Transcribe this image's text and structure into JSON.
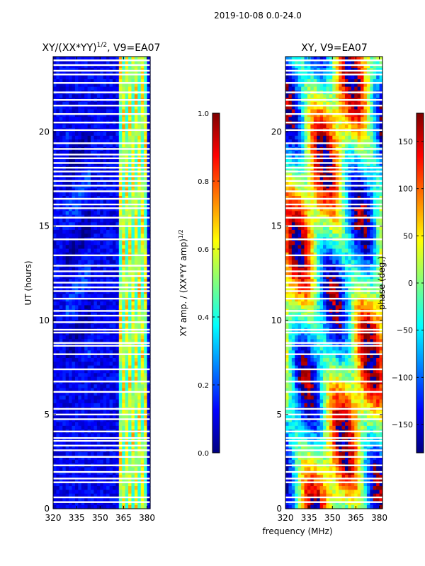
{
  "suptitle": "2019-10-08 0.0-24.0",
  "shared_xlabel": "frequency (MHz)",
  "colormap": "jet",
  "colors": {
    "jet_stops": [
      "#00007f",
      "#0000ff",
      "#007fff",
      "#00ffff",
      "#7fff7f",
      "#ffff00",
      "#ff7f00",
      "#ff0000",
      "#7f0000"
    ],
    "gap": "#ffffff"
  },
  "chart_data": [
    {
      "type": "heatmap",
      "title": "XY/(XX*YY)",
      "title_superscript": "1/2",
      "title_suffix": ", V9=EA07",
      "xlabel": "",
      "ylabel": "UT (hours)",
      "xlim": [
        320,
        382
      ],
      "ylim": [
        0,
        24
      ],
      "xticks": [
        "320",
        "335",
        "350",
        "365",
        "380"
      ],
      "xtick_values": [
        320,
        335,
        350,
        365,
        380
      ],
      "yticks": [
        "0",
        "5",
        "10",
        "15",
        "20"
      ],
      "ytick_values": [
        0,
        5,
        10,
        15,
        20
      ],
      "colorbar": {
        "label": "XY amp. / (XX*YY amp)",
        "label_superscript": "1/2",
        "range": [
          0,
          1
        ],
        "tick_values": [
          0.0,
          0.2,
          0.4,
          0.6,
          0.8,
          1.0
        ],
        "ticks": [
          "0.0",
          "0.2",
          "0.4",
          "0.6",
          "0.8",
          "1.0"
        ]
      },
      "description_values": {
        "background_level": 0.05,
        "bright_band_mhz": [
          362,
          380
        ],
        "bright_band_level": [
          0.4,
          0.75
        ]
      }
    },
    {
      "type": "heatmap",
      "title": "XY, V9=EA07",
      "xlabel": "",
      "ylabel": "",
      "xlim": [
        320,
        382
      ],
      "ylim": [
        0,
        24
      ],
      "xticks": [
        "320",
        "335",
        "350",
        "365",
        "380"
      ],
      "xtick_values": [
        320,
        335,
        350,
        365,
        380
      ],
      "yticks": [
        "0",
        "5",
        "10",
        "15",
        "20"
      ],
      "ytick_values": [
        0,
        5,
        10,
        15,
        20
      ],
      "colorbar": {
        "label": "phase (deg.)",
        "range": [
          -180,
          180
        ],
        "tick_values": [
          -150,
          -100,
          -50,
          0,
          50,
          100,
          150
        ],
        "ticks": [
          "−150",
          "−100",
          "−50",
          "0",
          "50",
          "100",
          "150"
        ]
      }
    }
  ],
  "flagged_gaps_hours": [
    0.35,
    0.6,
    1.4,
    1.6,
    1.95,
    2.3,
    2.75,
    3.1,
    3.35,
    3.6,
    3.75,
    4.1,
    4.75,
    5.0,
    5.3,
    6.2,
    6.75,
    7.4,
    8.2,
    8.65,
    8.8,
    9.35,
    9.5,
    9.9,
    10.25,
    10.5,
    11.15,
    11.55,
    11.75,
    12.0,
    12.35,
    12.6,
    12.9,
    13.45,
    14.3,
    15.0,
    15.45,
    15.95,
    16.15,
    16.45,
    16.85,
    17.15,
    17.4,
    17.65,
    17.9,
    18.1,
    18.35,
    18.6,
    18.8,
    19.1,
    19.4,
    20.1,
    20.5,
    20.95,
    21.4,
    21.7,
    22.1,
    22.6,
    23.05,
    23.25,
    23.55,
    23.8
  ]
}
